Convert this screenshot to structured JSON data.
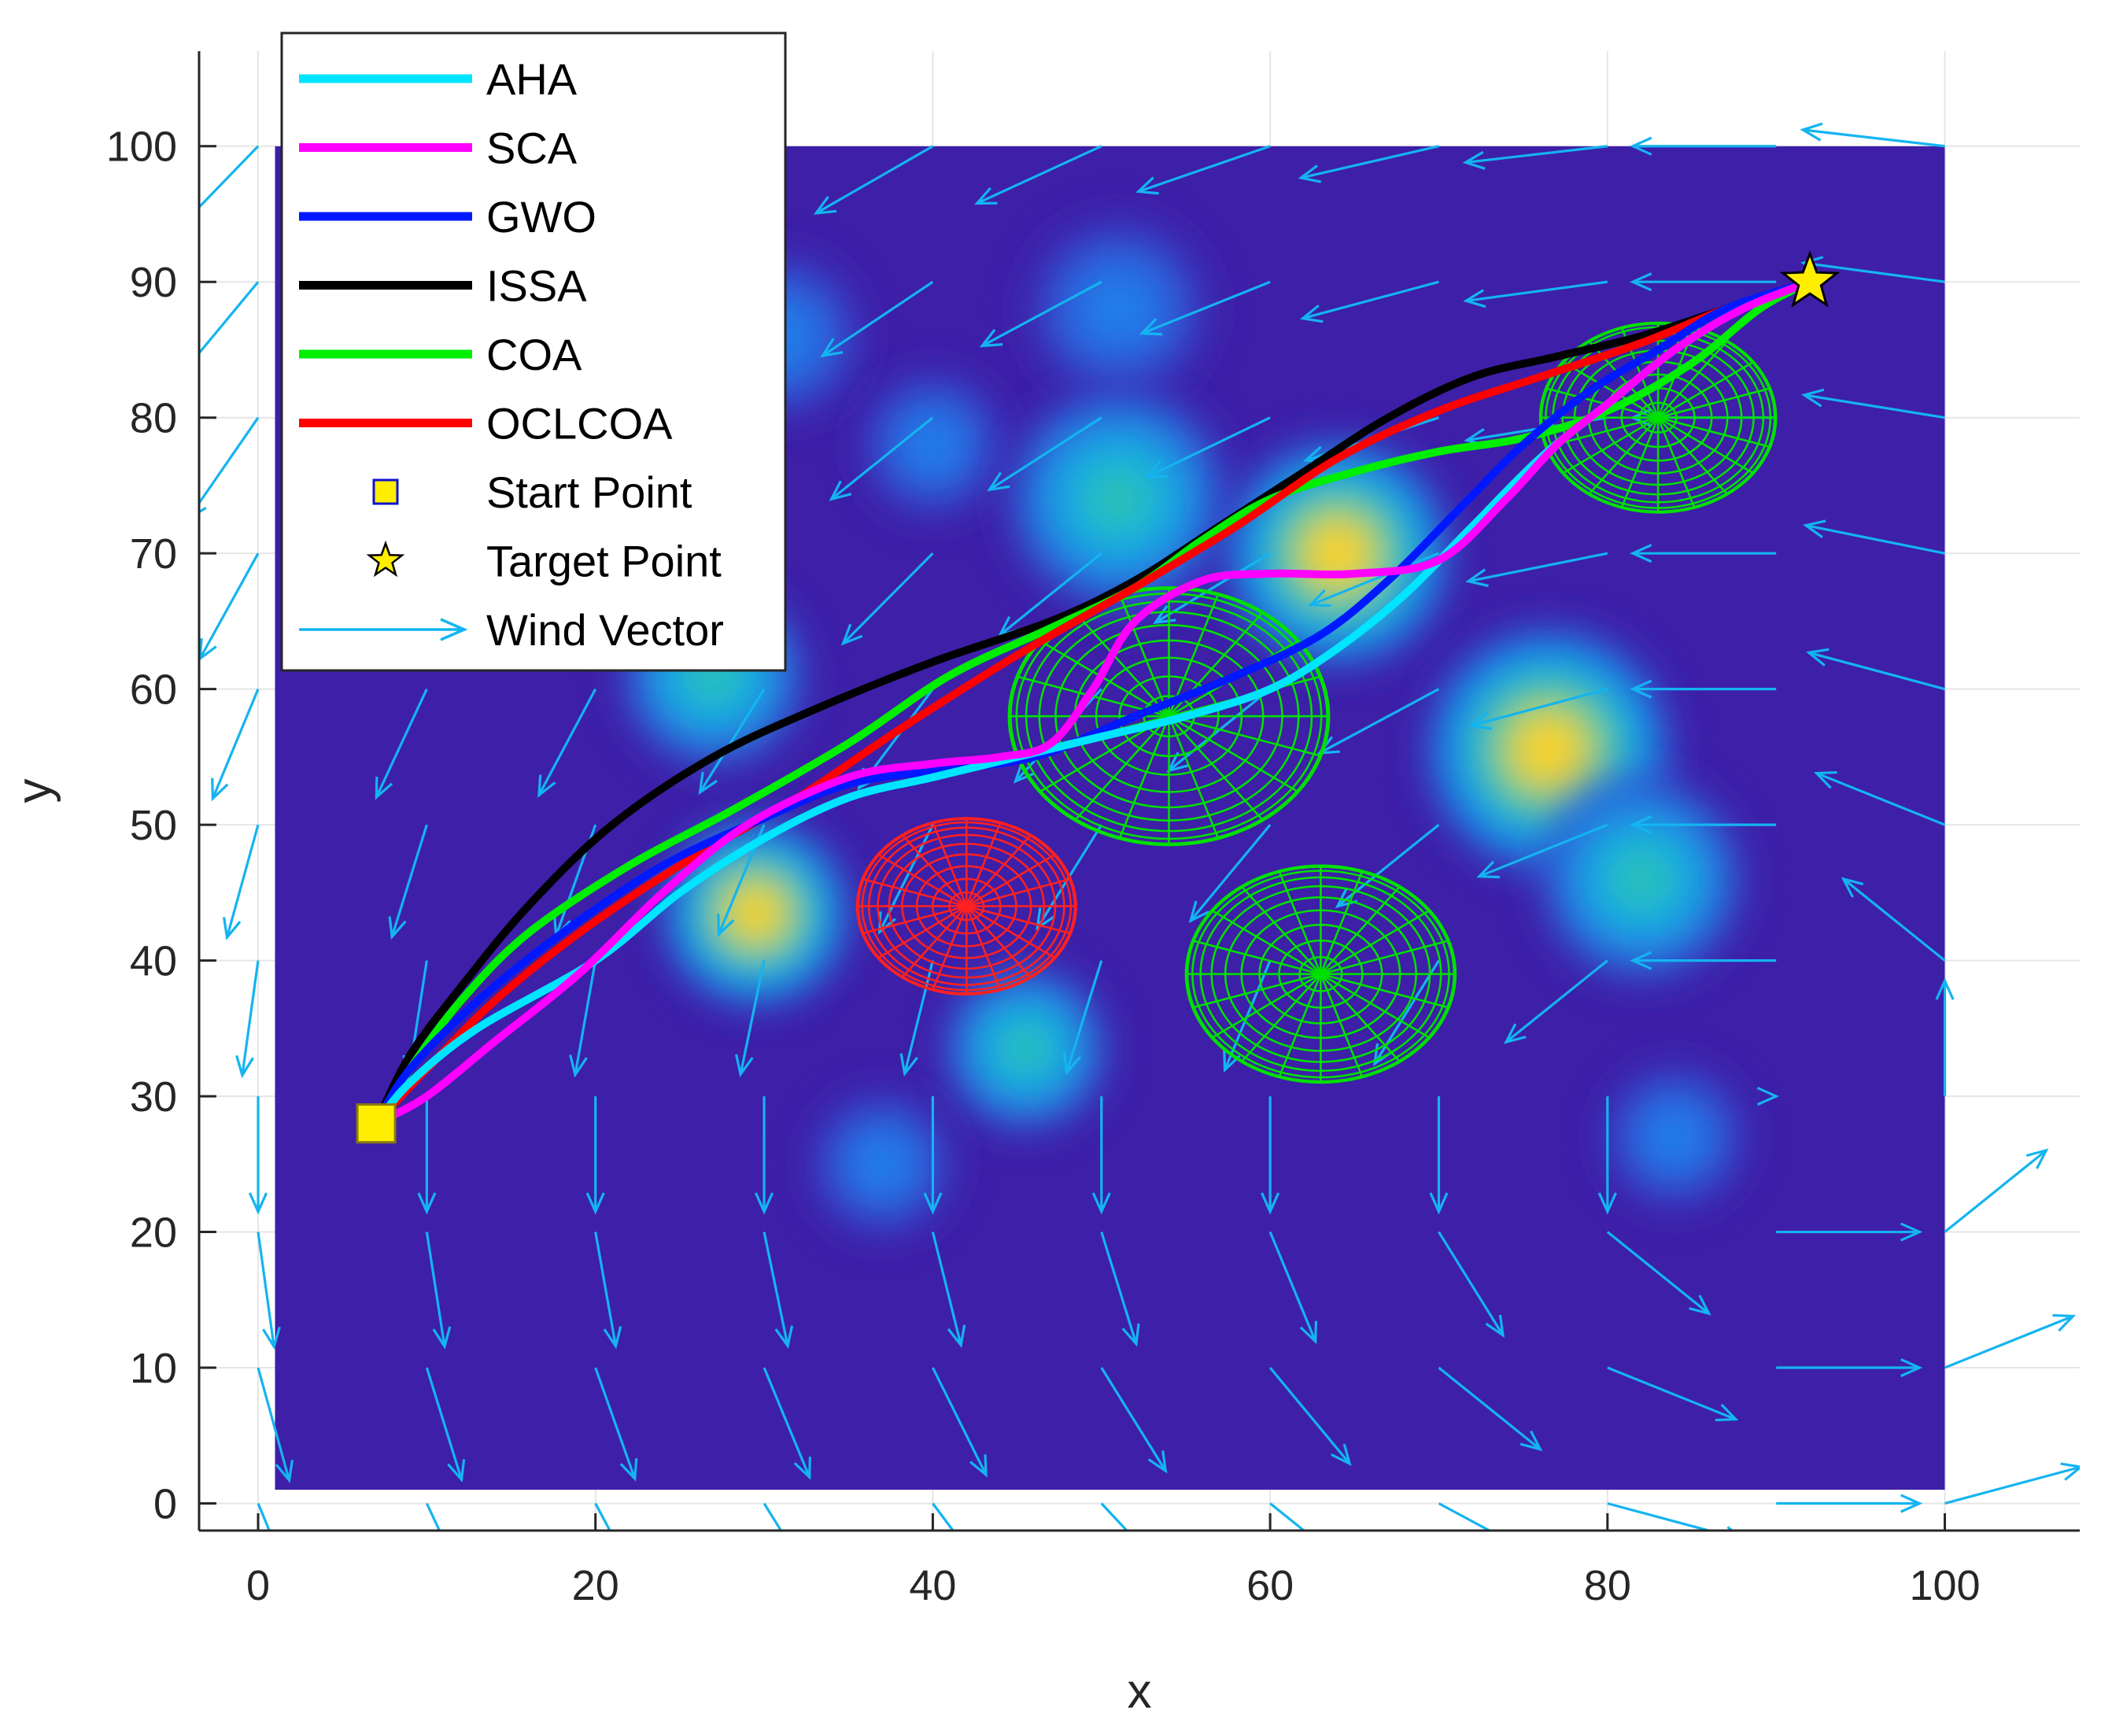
{
  "chart_data": {
    "type": "line",
    "title": "",
    "xlabel": "x",
    "ylabel": "y",
    "xlim": [
      -3.5,
      108
    ],
    "ylim": [
      -2,
      107
    ],
    "xticks": [
      0,
      20,
      40,
      60,
      80,
      100
    ],
    "yticks": [
      0,
      10,
      20,
      30,
      40,
      50,
      60,
      70,
      80,
      90,
      100
    ],
    "grid": true,
    "legend_position": "top-left",
    "background_field": {
      "x_range": [
        1,
        100
      ],
      "y_range": [
        1,
        100
      ],
      "base_color": "#3d1fa8",
      "hotspots": [
        {
          "x": 51,
          "y": 88,
          "r": 5,
          "intensity": 0.35
        },
        {
          "x": 31,
          "y": 86,
          "r": 4.5,
          "intensity": 0.35
        },
        {
          "x": 40,
          "y": 78,
          "r": 4,
          "intensity": 0.25
        },
        {
          "x": 51,
          "y": 74,
          "r": 6,
          "intensity": 0.6
        },
        {
          "x": 64,
          "y": 70,
          "r": 6,
          "intensity": 0.95
        },
        {
          "x": 27,
          "y": 61,
          "r": 5,
          "intensity": 0.4
        },
        {
          "x": 76.5,
          "y": 55.5,
          "r": 6.5,
          "intensity": 1.0
        },
        {
          "x": 82,
          "y": 46,
          "r": 5.5,
          "intensity": 0.45
        },
        {
          "x": 29.5,
          "y": 43.5,
          "r": 5,
          "intensity": 0.8
        },
        {
          "x": 45.5,
          "y": 33.5,
          "r": 4.5,
          "intensity": 0.55
        },
        {
          "x": 37,
          "y": 25,
          "r": 4,
          "intensity": 0.3
        },
        {
          "x": 84,
          "y": 27,
          "r": 4,
          "intensity": 0.3
        }
      ]
    },
    "obstacles": [
      {
        "cx": 54,
        "cy": 58,
        "r": 9.5,
        "color": "#00e000"
      },
      {
        "cx": 42,
        "cy": 44,
        "r": 6.5,
        "color": "#ff2020"
      },
      {
        "cx": 63,
        "cy": 39,
        "r": 8,
        "color": "#00e000"
      },
      {
        "cx": 83,
        "cy": 80,
        "r": 7,
        "color": "#00e000"
      }
    ],
    "series": [
      {
        "name": "AHA",
        "color": "#00e5ff",
        "x": [
          7,
          9,
          13,
          20,
          25,
          30,
          35,
          40,
          45,
          50,
          55,
          60,
          64,
          68,
          72,
          76,
          80,
          84,
          88,
          92
        ],
        "y": [
          28,
          31,
          35,
          40,
          45,
          49,
          52,
          53.5,
          55,
          56.5,
          58,
          60,
          63,
          67,
          72,
          77,
          81,
          85,
          88,
          90
        ]
      },
      {
        "name": "SCA",
        "color": "#ff00ff",
        "x": [
          7,
          10,
          14,
          19,
          24,
          29,
          35,
          40,
          44,
          47,
          49.5,
          52,
          56,
          60,
          65,
          70,
          74,
          77,
          80,
          84,
          88,
          92
        ],
        "y": [
          28,
          30,
          34,
          39,
          45,
          50,
          53.5,
          54.5,
          55,
          56,
          60,
          65,
          68,
          68.5,
          68.5,
          69.5,
          74,
          78,
          81,
          85,
          88,
          90
        ]
      },
      {
        "name": "GWO",
        "color": "#0018ff",
        "x": [
          7,
          9,
          13,
          18,
          24,
          30,
          35,
          40,
          46,
          52,
          58,
          63,
          67,
          71,
          75,
          79,
          83,
          87,
          92
        ],
        "y": [
          28,
          32,
          37,
          42,
          47,
          50.5,
          53,
          54,
          55,
          58,
          61,
          64,
          68,
          73,
          78,
          82,
          85,
          88,
          90
        ]
      },
      {
        "name": "ISSA",
        "color": "#000000",
        "x": [
          7,
          9,
          12,
          16,
          21,
          27,
          33,
          40,
          47,
          52,
          57,
          62,
          67,
          72,
          77,
          82,
          87,
          92
        ],
        "y": [
          28,
          33,
          38,
          44,
          50,
          55,
          58.5,
          62,
          65,
          68,
          72,
          76,
          80,
          83,
          84.5,
          86,
          88,
          90
        ]
      },
      {
        "name": "COA",
        "color": "#00ee00",
        "x": [
          7,
          9,
          12,
          16,
          22,
          28,
          35,
          41,
          47,
          52,
          56,
          60,
          65,
          70,
          75,
          80,
          85,
          89,
          92
        ],
        "y": [
          28,
          32,
          37,
          42,
          47,
          51,
          56,
          61,
          64.5,
          67.5,
          71,
          74,
          76,
          77.5,
          78.5,
          80.5,
          84,
          88,
          90
        ]
      },
      {
        "name": "OCLCOA",
        "color": "#ff0000",
        "x": [
          7,
          10,
          14,
          19,
          25,
          32,
          38,
          45,
          52,
          58,
          64,
          70,
          76,
          82,
          87,
          92
        ],
        "y": [
          28,
          32,
          37,
          42,
          47,
          52,
          57,
          62.5,
          67.5,
          72,
          77,
          80.5,
          83,
          85.5,
          88,
          90
        ]
      }
    ],
    "start_point": {
      "name": "Start Point",
      "x": 7,
      "y": 28,
      "marker": "square",
      "color": "#ffee00"
    },
    "target_point": {
      "name": "Target Point",
      "x": 92,
      "y": 90,
      "marker": "star",
      "color": "#ffee00"
    },
    "wind": {
      "name": "Wind Vector",
      "color": "#14b4f0"
    },
    "legend": [
      "AHA",
      "SCA",
      "GWO",
      "ISSA",
      "COA",
      "OCLCOA",
      "Start Point",
      "Target Point",
      "Wind Vector"
    ]
  }
}
